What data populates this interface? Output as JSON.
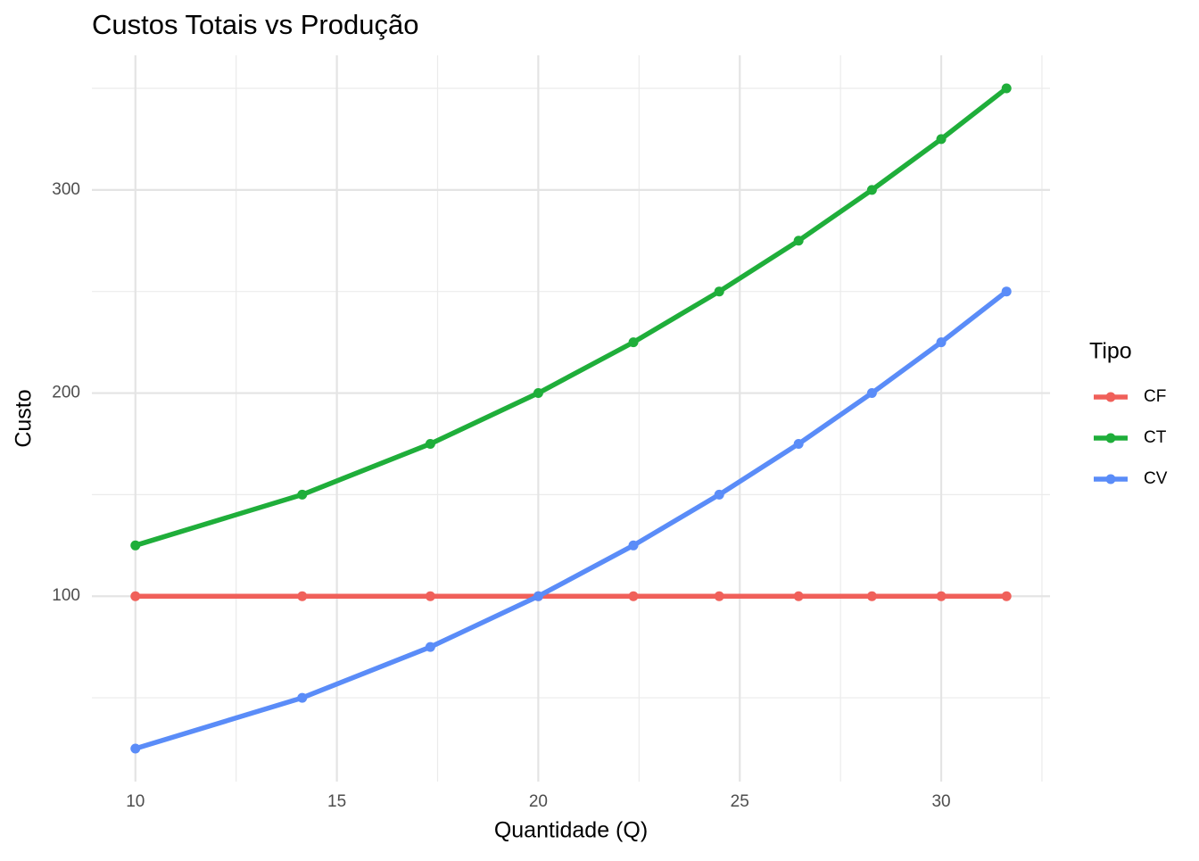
{
  "chart_data": {
    "type": "line",
    "title": "Custos Totais vs Produção",
    "x_label": "Quantidade (Q)",
    "y_label": "Custo",
    "legend_title": "Tipo",
    "x": [
      10,
      14.14,
      17.32,
      20,
      22.36,
      24.49,
      26.46,
      28.28,
      30,
      31.62
    ],
    "series": [
      {
        "name": "CF",
        "color": "#f0605a",
        "values": [
          100,
          100,
          100,
          100,
          100,
          100,
          100,
          100,
          100,
          100
        ]
      },
      {
        "name": "CT",
        "color": "#1fae3a",
        "values": [
          125,
          150,
          175,
          200,
          225,
          250,
          275,
          300,
          325,
          350
        ]
      },
      {
        "name": "CV",
        "color": "#5a8cf8",
        "values": [
          25,
          50,
          75,
          100,
          125,
          150,
          175,
          200,
          225,
          250
        ]
      }
    ],
    "xlim": [
      8.92,
      32.7
    ],
    "ylim": [
      8.75,
      366.25
    ],
    "xticks": [
      10,
      15,
      20,
      25,
      30
    ],
    "yticks": [
      100,
      200,
      300
    ],
    "grid": true,
    "legend_position": "right"
  }
}
